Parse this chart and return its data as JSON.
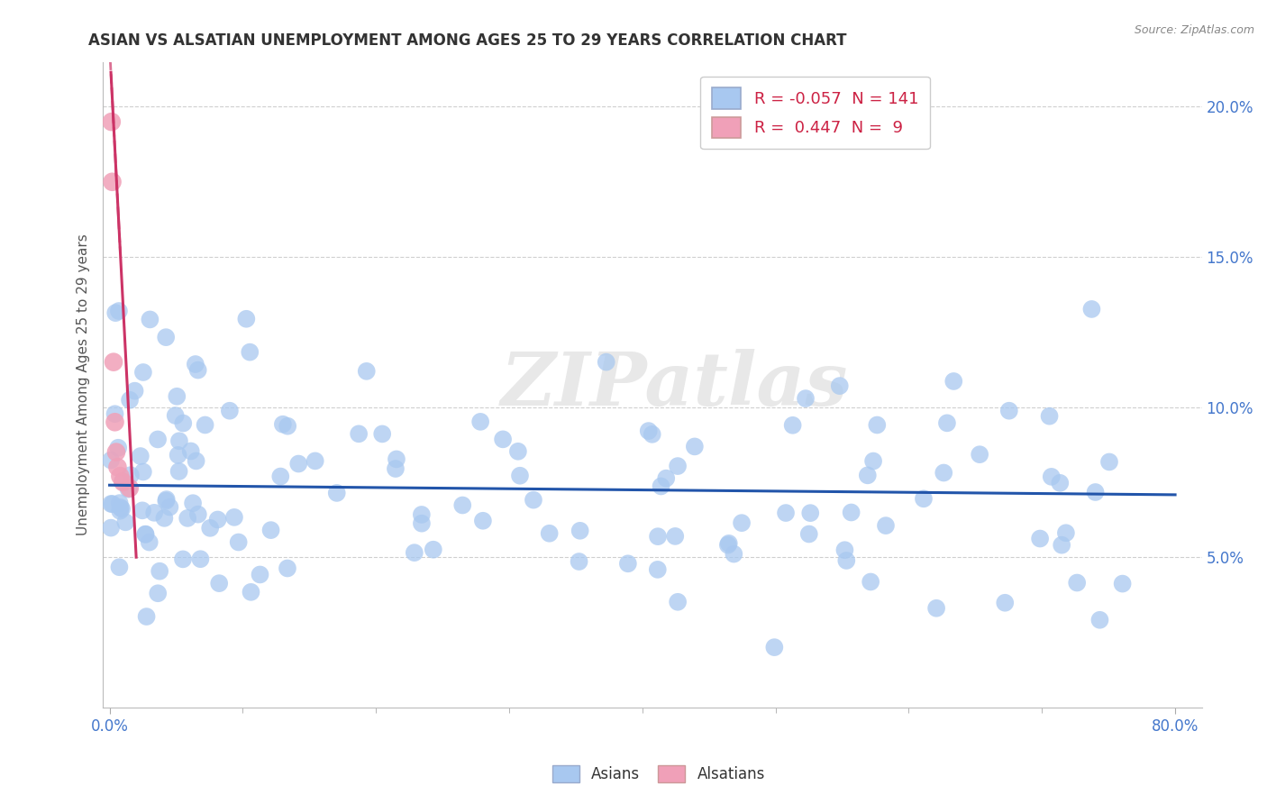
{
  "title": "ASIAN VS ALSATIAN UNEMPLOYMENT AMONG AGES 25 TO 29 YEARS CORRELATION CHART",
  "source": "Source: ZipAtlas.com",
  "ylabel": "Unemployment Among Ages 25 to 29 years",
  "watermark": "ZIPatlas",
  "xlim": [
    -0.005,
    0.82
  ],
  "ylim": [
    0.0,
    0.215
  ],
  "yticks": [
    0.05,
    0.1,
    0.15,
    0.2
  ],
  "ytick_labels": [
    "5.0%",
    "10.0%",
    "15.0%",
    "20.0%"
  ],
  "xticks": [
    0.0,
    0.8
  ],
  "xtick_labels": [
    "0.0%",
    "80.0%"
  ],
  "asian_color": "#a8c8f0",
  "alsatian_color": "#f0a0b8",
  "asian_r": -0.057,
  "asian_n": 141,
  "alsatian_r": 0.447,
  "alsatian_n": 9,
  "trend_asian_color": "#2255aa",
  "trend_alsatian_color": "#cc3366",
  "background_color": "#ffffff",
  "grid_color": "#bbbbbb",
  "legend_r_color": "#cc0000",
  "legend_n_color": "#2255aa"
}
